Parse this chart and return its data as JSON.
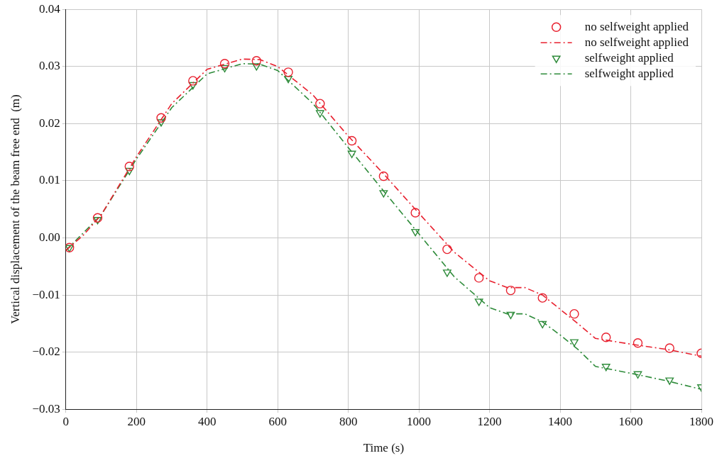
{
  "chart_data": {
    "type": "line",
    "xlabel": "Time (s)",
    "ylabel": "Vertical displacement of the beam free end  (m)",
    "xlim": [
      0,
      1800
    ],
    "xticks": [
      0,
      200,
      400,
      600,
      800,
      1000,
      1200,
      1400,
      1600,
      1800
    ],
    "ylim": [
      -0.03,
      0.04
    ],
    "yticks": [
      {
        "value": -0.03,
        "label": "−0.03"
      },
      {
        "value": -0.02,
        "label": "−0.02"
      },
      {
        "value": -0.01,
        "label": "−0.01"
      },
      {
        "value": 0,
        "label": "0.00"
      },
      {
        "value": 0.01,
        "label": "0.01"
      },
      {
        "value": 0.02,
        "label": "0.02"
      },
      {
        "value": 0.03,
        "label": "0.03"
      },
      {
        "value": 0.04,
        "label": "0.04"
      }
    ],
    "grid": true,
    "legend": "top right",
    "series": [
      {
        "name": "no selfweight applied",
        "type": "scatter",
        "marker": "circle",
        "color": "#e8212f",
        "x": [
          10,
          90,
          180,
          270,
          360,
          450,
          540,
          630,
          720,
          810,
          900,
          990,
          1080,
          1170,
          1260,
          1350,
          1440,
          1530,
          1620,
          1710,
          1800
        ],
        "values": [
          -0.0017,
          0.0035,
          0.0125,
          0.021,
          0.0275,
          0.0305,
          0.031,
          0.029,
          0.0235,
          0.017,
          0.0108,
          0.0044,
          -0.002,
          -0.007,
          -0.0092,
          -0.0105,
          -0.0133,
          -0.0174,
          -0.0184,
          -0.0193,
          -0.0202
        ]
      },
      {
        "name": "no selfweight applied",
        "type": "line",
        "marker": "none",
        "line_style": "dashed",
        "color": "#e8212f",
        "x": [
          0,
          50,
          100,
          200,
          300,
          400,
          500,
          550,
          600,
          700,
          800,
          900,
          1000,
          1100,
          1200,
          1250,
          1300,
          1350,
          1400,
          1450,
          1500,
          1600,
          1700,
          1800
        ],
        "values": [
          -0.0022,
          0.0005,
          0.004,
          0.0142,
          0.0235,
          0.0295,
          0.0313,
          0.0312,
          0.03,
          0.025,
          0.0178,
          0.0112,
          0.0043,
          -0.0025,
          -0.0075,
          -0.0087,
          -0.0087,
          -0.01,
          -0.0125,
          -0.015,
          -0.0176,
          -0.0186,
          -0.0195,
          -0.0207
        ]
      },
      {
        "name": "selfweight applied",
        "type": "scatter",
        "marker": "triangle",
        "color": "#2e8b3a",
        "x": [
          10,
          90,
          180,
          270,
          360,
          450,
          540,
          630,
          720,
          810,
          900,
          990,
          1080,
          1170,
          1260,
          1350,
          1440,
          1530,
          1620,
          1710,
          1800
        ],
        "values": [
          -0.0017,
          0.0032,
          0.0118,
          0.0203,
          0.0268,
          0.0298,
          0.0301,
          0.0279,
          0.0219,
          0.0148,
          0.0079,
          0.0011,
          -0.006,
          -0.0111,
          -0.0134,
          -0.015,
          -0.0182,
          -0.0225,
          -0.0238,
          -0.0249,
          -0.0261
        ]
      },
      {
        "name": "selfweight applied",
        "type": "line",
        "marker": "none",
        "line_style": "dashed",
        "color": "#2e8b3a",
        "x": [
          0,
          100,
          200,
          300,
          400,
          500,
          550,
          600,
          700,
          800,
          900,
          1000,
          1100,
          1200,
          1250,
          1300,
          1350,
          1400,
          1450,
          1500,
          1600,
          1700,
          1800
        ],
        "values": [
          -0.0022,
          0.004,
          0.0138,
          0.0228,
          0.0287,
          0.0305,
          0.0304,
          0.0293,
          0.0235,
          0.0158,
          0.0082,
          0.0007,
          -0.0068,
          -0.0122,
          -0.0133,
          -0.0133,
          -0.0147,
          -0.017,
          -0.0195,
          -0.0225,
          -0.0237,
          -0.025,
          -0.0265
        ]
      }
    ]
  }
}
